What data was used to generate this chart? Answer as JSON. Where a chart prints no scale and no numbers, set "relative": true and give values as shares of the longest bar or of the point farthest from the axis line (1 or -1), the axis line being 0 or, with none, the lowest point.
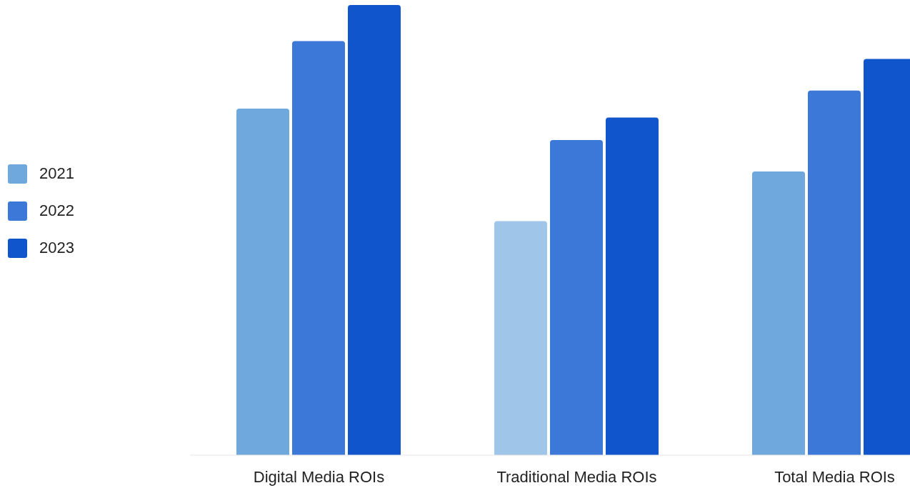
{
  "chart_data": {
    "type": "bar",
    "relative": true,
    "categories": [
      "Digital Media ROIs",
      "Traditional Media ROIs",
      "Total Media ROIs"
    ],
    "series": [
      {
        "name": "2021",
        "color": "#6fa8dc",
        "colors": [
          "#6fa8dc",
          "#9fc5e8",
          "#6fa8dc"
        ],
        "values": [
          0.77,
          0.52,
          0.63
        ]
      },
      {
        "name": "2022",
        "color": "#3c78d8",
        "values": [
          0.92,
          0.7,
          0.81
        ]
      },
      {
        "name": "2023",
        "color": "#1155cc",
        "values": [
          1,
          0.75,
          0.88
        ]
      }
    ],
    "legend": "left"
  }
}
